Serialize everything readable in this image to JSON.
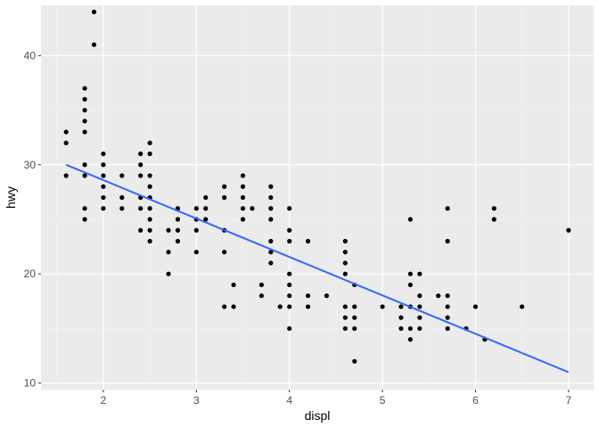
{
  "chart_data": {
    "type": "scatter",
    "xlabel": "displ",
    "ylabel": "hwy",
    "xlim": [
      1.33,
      7.27
    ],
    "ylim": [
      9.4,
      44.6
    ],
    "x_ticks": [
      2,
      3,
      4,
      5,
      6,
      7
    ],
    "y_ticks": [
      10,
      20,
      30,
      40
    ],
    "grid": true,
    "colors": {
      "panel_background": "#ebebeb",
      "grid_major": "#ffffff",
      "grid_minor": "#f5f5f5",
      "points": "#000000",
      "trend_line": "#3366ff"
    },
    "points": [
      [
        1.6,
        33
      ],
      [
        1.6,
        32
      ],
      [
        1.6,
        29
      ],
      [
        1.8,
        37
      ],
      [
        1.8,
        36
      ],
      [
        1.8,
        35
      ],
      [
        1.8,
        34
      ],
      [
        1.8,
        33
      ],
      [
        1.8,
        30
      ],
      [
        1.8,
        29
      ],
      [
        1.8,
        26
      ],
      [
        1.8,
        25
      ],
      [
        1.9,
        44
      ],
      [
        1.9,
        41
      ],
      [
        2.0,
        31
      ],
      [
        2.0,
        30
      ],
      [
        2.0,
        29
      ],
      [
        2.0,
        28
      ],
      [
        2.0,
        27
      ],
      [
        2.0,
        26
      ],
      [
        2.2,
        29
      ],
      [
        2.2,
        27
      ],
      [
        2.2,
        26
      ],
      [
        2.4,
        31
      ],
      [
        2.4,
        30
      ],
      [
        2.4,
        29
      ],
      [
        2.4,
        27
      ],
      [
        2.4,
        26
      ],
      [
        2.4,
        24
      ],
      [
        2.5,
        32
      ],
      [
        2.5,
        31
      ],
      [
        2.5,
        29
      ],
      [
        2.5,
        28
      ],
      [
        2.5,
        27
      ],
      [
        2.5,
        26
      ],
      [
        2.5,
        25
      ],
      [
        2.5,
        24
      ],
      [
        2.5,
        23
      ],
      [
        2.7,
        24
      ],
      [
        2.7,
        22
      ],
      [
        2.7,
        20
      ],
      [
        2.8,
        26
      ],
      [
        2.8,
        25
      ],
      [
        2.8,
        24
      ],
      [
        2.8,
        23
      ],
      [
        3.0,
        26
      ],
      [
        3.0,
        25
      ],
      [
        3.0,
        24
      ],
      [
        3.0,
        22
      ],
      [
        3.1,
        27
      ],
      [
        3.1,
        26
      ],
      [
        3.1,
        25
      ],
      [
        3.3,
        28
      ],
      [
        3.3,
        27
      ],
      [
        3.3,
        24
      ],
      [
        3.3,
        22
      ],
      [
        3.3,
        17
      ],
      [
        3.4,
        19
      ],
      [
        3.4,
        17
      ],
      [
        3.5,
        29
      ],
      [
        3.5,
        28
      ],
      [
        3.5,
        27
      ],
      [
        3.5,
        26
      ],
      [
        3.5,
        25
      ],
      [
        3.6,
        26
      ],
      [
        3.7,
        19
      ],
      [
        3.7,
        18
      ],
      [
        3.8,
        28
      ],
      [
        3.8,
        27
      ],
      [
        3.8,
        26
      ],
      [
        3.8,
        25
      ],
      [
        3.8,
        23
      ],
      [
        3.8,
        22
      ],
      [
        3.8,
        21
      ],
      [
        3.9,
        17
      ],
      [
        4.0,
        26
      ],
      [
        4.0,
        24
      ],
      [
        4.0,
        23
      ],
      [
        4.0,
        20
      ],
      [
        4.0,
        19
      ],
      [
        4.0,
        18
      ],
      [
        4.0,
        17
      ],
      [
        4.0,
        15
      ],
      [
        4.2,
        23
      ],
      [
        4.2,
        18
      ],
      [
        4.2,
        17
      ],
      [
        4.4,
        18
      ],
      [
        4.6,
        23
      ],
      [
        4.6,
        22
      ],
      [
        4.6,
        21
      ],
      [
        4.6,
        20
      ],
      [
        4.6,
        17
      ],
      [
        4.6,
        16
      ],
      [
        4.6,
        15
      ],
      [
        4.7,
        19
      ],
      [
        4.7,
        17
      ],
      [
        4.7,
        16
      ],
      [
        4.7,
        15
      ],
      [
        4.7,
        12
      ],
      [
        5.0,
        17
      ],
      [
        5.2,
        17
      ],
      [
        5.2,
        16
      ],
      [
        5.2,
        15
      ],
      [
        5.3,
        25
      ],
      [
        5.3,
        20
      ],
      [
        5.3,
        19
      ],
      [
        5.3,
        17
      ],
      [
        5.3,
        15
      ],
      [
        5.3,
        14
      ],
      [
        5.4,
        20
      ],
      [
        5.4,
        18
      ],
      [
        5.4,
        17
      ],
      [
        5.4,
        16
      ],
      [
        5.4,
        15
      ],
      [
        5.6,
        18
      ],
      [
        5.7,
        26
      ],
      [
        5.7,
        23
      ],
      [
        5.7,
        18
      ],
      [
        5.7,
        17
      ],
      [
        5.7,
        16
      ],
      [
        5.7,
        15
      ],
      [
        5.9,
        15
      ],
      [
        6.0,
        17
      ],
      [
        6.1,
        14
      ],
      [
        6.2,
        26
      ],
      [
        6.2,
        25
      ],
      [
        6.5,
        17
      ],
      [
        7.0,
        24
      ]
    ],
    "trend_line": {
      "from": [
        1.6,
        30.0
      ],
      "to": [
        7.0,
        11.0
      ]
    }
  }
}
